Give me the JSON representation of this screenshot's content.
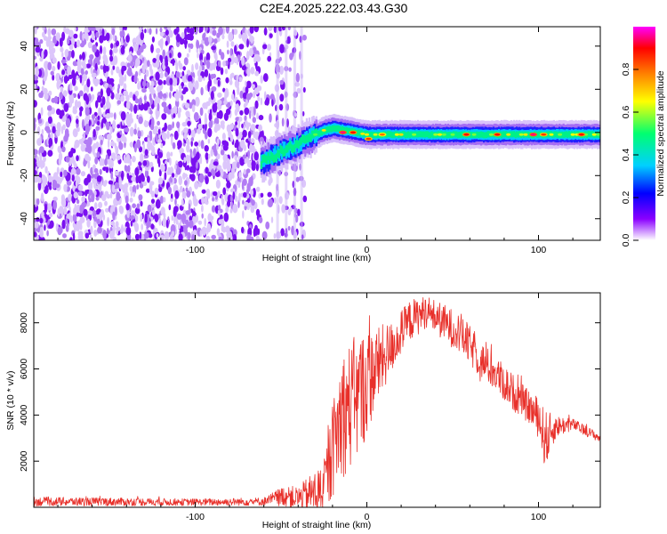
{
  "title": "C2E4.2025.222.03.43.G30",
  "colors": {
    "snr_line": "#e8302a",
    "axis": "#000000",
    "background": "#ffffff"
  },
  "chart_data": [
    {
      "type": "heatmap",
      "xlabel": "Height of straight line (km)",
      "ylabel": "Frequency (Hz)",
      "xlim": [
        -194,
        136
      ],
      "ylim": [
        -50,
        49
      ],
      "x_ticks": [
        -100,
        0,
        100
      ],
      "y_ticks": [
        -40,
        -20,
        0,
        20,
        40
      ],
      "colorbar": {
        "label": "Normalized spectral amplitude",
        "range": [
          0,
          1
        ],
        "ticks": [
          "0.0",
          "0.2",
          "0.4",
          "0.6",
          "0.8"
        ],
        "colormap": [
          "#ffffff",
          "#8a00ff",
          "#0000ff",
          "#00d0ff",
          "#00ff70",
          "#ffff00",
          "#ff8000",
          "#ff0000",
          "#ff00ff"
        ]
      },
      "noise_region_x": [
        -194,
        -36
      ],
      "ridge": [
        {
          "x": -62,
          "f": -14
        },
        {
          "x": -55,
          "f": -11
        },
        {
          "x": -48,
          "f": -8
        },
        {
          "x": -42,
          "f": -6
        },
        {
          "x": -35,
          "f": -3
        },
        {
          "x": -30,
          "f": -1
        },
        {
          "x": -25,
          "f": 1
        },
        {
          "x": -20,
          "f": 2
        },
        {
          "x": -10,
          "f": 0.5
        },
        {
          "x": 0,
          "f": -1
        },
        {
          "x": 10,
          "f": -1
        },
        {
          "x": 30,
          "f": -1
        },
        {
          "x": 60,
          "f": -1
        },
        {
          "x": 90,
          "f": -1
        },
        {
          "x": 110,
          "f": -1
        },
        {
          "x": 136,
          "f": -1
        }
      ],
      "hot_spots": [
        {
          "x": -14,
          "f": 0,
          "v": 0.95
        },
        {
          "x": -8,
          "f": 0,
          "v": 0.9
        },
        {
          "x": 1,
          "f": -3,
          "v": 0.85
        },
        {
          "x": 9,
          "f": -1,
          "v": 0.8
        },
        {
          "x": 58,
          "f": -1,
          "v": 0.9
        },
        {
          "x": 76,
          "f": -1,
          "v": 0.9
        },
        {
          "x": 97,
          "f": -1,
          "v": 0.95
        },
        {
          "x": 103,
          "f": -1,
          "v": 0.85
        },
        {
          "x": 125,
          "f": -1,
          "v": 0.9
        }
      ]
    },
    {
      "type": "line",
      "xlabel": "Height of straight line (km)",
      "ylabel": "SNR (10 * v/v)",
      "xlim": [
        -194,
        136
      ],
      "ylim": [
        0,
        9300
      ],
      "x_ticks": [
        -100,
        0,
        100
      ],
      "y_ticks": [
        2000,
        4000,
        6000,
        8000
      ],
      "series": [
        {
          "envelope": [
            {
              "x": -194,
              "y": 250,
              "amp": 200
            },
            {
              "x": -150,
              "y": 240,
              "amp": 180
            },
            {
              "x": -100,
              "y": 220,
              "amp": 150
            },
            {
              "x": -60,
              "y": 250,
              "amp": 180
            },
            {
              "x": -48,
              "y": 500,
              "amp": 450
            },
            {
              "x": -40,
              "y": 400,
              "amp": 500
            },
            {
              "x": -25,
              "y": 800,
              "amp": 1200
            },
            {
              "x": -15,
              "y": 4000,
              "amp": 2800
            },
            {
              "x": -5,
              "y": 4800,
              "amp": 2800
            },
            {
              "x": 5,
              "y": 6000,
              "amp": 1800
            },
            {
              "x": 15,
              "y": 7000,
              "amp": 1100
            },
            {
              "x": 25,
              "y": 8100,
              "amp": 900
            },
            {
              "x": 35,
              "y": 8500,
              "amp": 700
            },
            {
              "x": 45,
              "y": 8000,
              "amp": 800
            },
            {
              "x": 55,
              "y": 7500,
              "amp": 900
            },
            {
              "x": 65,
              "y": 6500,
              "amp": 800
            },
            {
              "x": 75,
              "y": 5800,
              "amp": 800
            },
            {
              "x": 85,
              "y": 5000,
              "amp": 800
            },
            {
              "x": 95,
              "y": 4300,
              "amp": 700
            },
            {
              "x": 100,
              "y": 3900,
              "amp": 900
            },
            {
              "x": 104,
              "y": 2900,
              "amp": 1300
            },
            {
              "x": 110,
              "y": 3500,
              "amp": 500
            },
            {
              "x": 120,
              "y": 3600,
              "amp": 250
            },
            {
              "x": 136,
              "y": 3000,
              "amp": 200
            }
          ]
        }
      ]
    }
  ]
}
